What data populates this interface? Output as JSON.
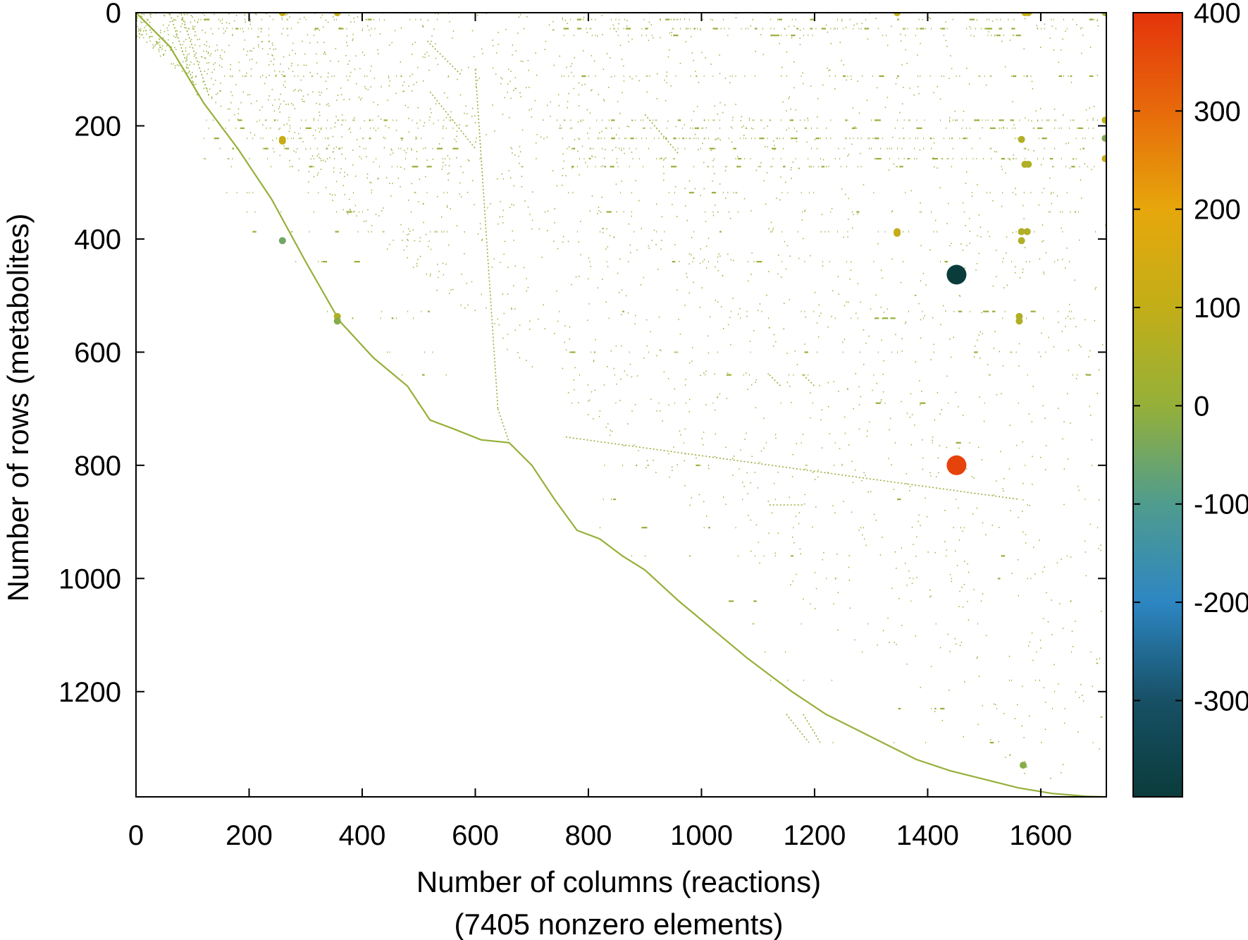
{
  "chart_data": {
    "type": "scatter",
    "title": "",
    "xlabel": "Number of columns (reactions)",
    "xlabel_sub": "(7405 nonzero elements)",
    "ylabel": "Number of rows (metabolites)",
    "xlim": [
      0,
      1716
    ],
    "ylim": [
      1386,
      0
    ],
    "x_ticks": [
      0,
      200,
      400,
      600,
      800,
      1000,
      1200,
      1400,
      1600
    ],
    "y_ticks": [
      0,
      200,
      400,
      600,
      800,
      1000,
      1200
    ],
    "grid": false,
    "colorbar": {
      "min": -398,
      "max": 400,
      "ticks": [
        400,
        300,
        200,
        100,
        0,
        -100,
        -200,
        -300
      ],
      "stops": [
        {
          "v": -398,
          "c": "#0b3c3c"
        },
        {
          "v": -300,
          "c": "#175065"
        },
        {
          "v": -200,
          "c": "#2d86c2"
        },
        {
          "v": -100,
          "c": "#4f9c8e"
        },
        {
          "v": 0,
          "c": "#95b039"
        },
        {
          "v": 100,
          "c": "#c2ae18"
        },
        {
          "v": 200,
          "c": "#e6a70b"
        },
        {
          "v": 300,
          "c": "#e76a0b"
        },
        {
          "v": 400,
          "c": "#e5330b"
        }
      ]
    },
    "diagonal_segments": [
      [
        [
          0,
          0
        ],
        [
          60,
          60
        ],
        [
          120,
          160
        ],
        [
          180,
          240
        ],
        [
          240,
          330
        ],
        [
          300,
          440
        ],
        [
          360,
          545
        ],
        [
          420,
          610
        ],
        [
          480,
          660
        ],
        [
          520,
          720
        ],
        [
          560,
          735
        ],
        [
          610,
          755
        ],
        [
          660,
          760
        ],
        [
          700,
          800
        ],
        [
          740,
          860
        ],
        [
          780,
          915
        ],
        [
          820,
          930
        ],
        [
          860,
          960
        ],
        [
          900,
          985
        ],
        [
          960,
          1040
        ],
        [
          1020,
          1090
        ],
        [
          1080,
          1140
        ],
        [
          1120,
          1170
        ],
        [
          1160,
          1200
        ],
        [
          1220,
          1240
        ],
        [
          1280,
          1270
        ],
        [
          1320,
          1290
        ],
        [
          1380,
          1320
        ],
        [
          1440,
          1340
        ],
        [
          1500,
          1355
        ],
        [
          1560,
          1370
        ],
        [
          1620,
          1380
        ],
        [
          1680,
          1385
        ],
        [
          1716,
          1386
        ]
      ]
    ],
    "series": [
      {
        "kind": "large",
        "points": [
          {
            "x": 1451,
            "y": 463,
            "v": -398
          },
          {
            "x": 1451,
            "y": 800,
            "v": 372
          }
        ]
      },
      {
        "kind": "medium",
        "points": [
          {
            "x": 259,
            "y": 0,
            "v": 110
          },
          {
            "x": 356,
            "y": 0,
            "v": 110
          },
          {
            "x": 1346,
            "y": 0,
            "v": 110
          },
          {
            "x": 1572,
            "y": 0,
            "v": 110
          },
          {
            "x": 1578,
            "y": 0,
            "v": 110
          },
          {
            "x": 1714,
            "y": 0,
            "v": 20
          },
          {
            "x": 259,
            "y": 224,
            "v": 110
          },
          {
            "x": 259,
            "y": 227,
            "v": 110
          },
          {
            "x": 259,
            "y": 403,
            "v": -50
          },
          {
            "x": 356,
            "y": 537,
            "v": 60
          },
          {
            "x": 356,
            "y": 545,
            "v": -20
          },
          {
            "x": 1346,
            "y": 387,
            "v": 110
          },
          {
            "x": 1346,
            "y": 390,
            "v": 110
          },
          {
            "x": 1566,
            "y": 224,
            "v": 60
          },
          {
            "x": 1572,
            "y": 268,
            "v": 60
          },
          {
            "x": 1578,
            "y": 268,
            "v": 60
          },
          {
            "x": 1566,
            "y": 387,
            "v": 60
          },
          {
            "x": 1576,
            "y": 387,
            "v": 60
          },
          {
            "x": 1566,
            "y": 403,
            "v": 60
          },
          {
            "x": 1562,
            "y": 537,
            "v": 60
          },
          {
            "x": 1562,
            "y": 545,
            "v": 60
          },
          {
            "x": 1714,
            "y": 190,
            "v": 100
          },
          {
            "x": 1714,
            "y": 222,
            "v": -30
          },
          {
            "x": 1714,
            "y": 258,
            "v": 110
          },
          {
            "x": 1569,
            "y": 1330,
            "v": -20
          }
        ]
      }
    ],
    "band_rows": [
      0,
      12,
      28,
      40,
      112,
      190,
      204,
      222,
      240,
      258,
      272,
      318,
      352,
      387,
      440,
      528,
      540,
      600,
      640,
      690,
      760,
      800,
      860,
      910,
      960,
      1000,
      1040,
      1080,
      1130,
      1180,
      1230,
      1290
    ],
    "band_column_ranges": [
      [
        [
          0,
          110
        ],
        [
          130,
          520
        ],
        [
          820,
          1700
        ]
      ],
      [
        [
          60,
          100
        ],
        [
          110,
          540
        ],
        [
          740,
          1700
        ]
      ],
      [
        [
          90,
          430
        ],
        [
          750,
          1700
        ]
      ],
      [
        [
          90,
          430
        ],
        [
          750,
          1700
        ]
      ],
      [
        [
          90,
          560
        ],
        [
          740,
          1700
        ]
      ],
      [
        [
          120,
          560
        ],
        [
          740,
          1700
        ]
      ],
      [
        [
          120,
          560
        ],
        [
          740,
          1700
        ]
      ],
      [
        [
          120,
          560
        ],
        [
          740,
          1700
        ]
      ],
      [
        [
          120,
          560
        ],
        [
          740,
          1700
        ]
      ],
      [
        [
          120,
          560
        ],
        [
          740,
          1700
        ]
      ],
      [
        [
          130,
          560
        ],
        [
          740,
          1700
        ]
      ],
      [
        [
          150,
          560
        ],
        [
          740,
          1700
        ]
      ],
      [
        [
          180,
          560
        ],
        [
          740,
          1700
        ]
      ],
      [
        [
          200,
          560
        ],
        [
          740,
          1700
        ]
      ],
      [
        [
          260,
          560
        ],
        [
          740,
          1700
        ]
      ],
      [
        [
          330,
          560
        ],
        [
          740,
          1700
        ]
      ],
      [
        [
          340,
          560
        ],
        [
          740,
          1700
        ]
      ],
      [
        [
          420,
          560
        ],
        [
          740,
          1700
        ]
      ],
      [
        [
          440,
          560
        ],
        [
          760,
          1700
        ]
      ],
      [
        [
          480,
          560
        ],
        [
          760,
          1700
        ]
      ],
      [
        [
          760,
          1700
        ]
      ],
      [
        [
          760,
          1700
        ]
      ],
      [
        [
          780,
          1700
        ]
      ],
      [
        [
          820,
          1700
        ]
      ],
      [
        [
          860,
          1700
        ]
      ],
      [
        [
          900,
          1700
        ]
      ],
      [
        [
          960,
          1700
        ]
      ],
      [
        [
          1000,
          1700
        ]
      ],
      [
        [
          1060,
          1700
        ]
      ],
      [
        [
          1110,
          1700
        ]
      ],
      [
        [
          1160,
          1700
        ]
      ],
      [
        [
          1220,
          1700
        ]
      ]
    ],
    "band_density": [
      0.22,
      0.09,
      0.16,
      0.07,
      0.12,
      0.14,
      0.1,
      0.18,
      0.09,
      0.13,
      0.08,
      0.05,
      0.05,
      0.06,
      0.04,
      0.04,
      0.03,
      0.04,
      0.03,
      0.03,
      0.03,
      0.03,
      0.02,
      0.03,
      0.02,
      0.02,
      0.02,
      0.02,
      0.02,
      0.02,
      0.02,
      0.02
    ],
    "secondary_segments": [
      [
        [
          60,
          2
        ],
        [
          110,
          150
        ]
      ],
      [
        [
          80,
          2
        ],
        [
          130,
          150
        ]
      ],
      [
        [
          515,
          50
        ],
        [
          575,
          110
        ]
      ],
      [
        [
          520,
          140
        ],
        [
          600,
          240
        ]
      ],
      [
        [
          600,
          100
        ],
        [
          640,
          700
        ]
      ],
      [
        [
          640,
          700
        ],
        [
          660,
          760
        ]
      ],
      [
        [
          900,
          180
        ],
        [
          960,
          250
        ]
      ],
      [
        [
          1120,
          640
        ],
        [
          1140,
          660
        ]
      ],
      [
        [
          1180,
          640
        ],
        [
          1200,
          660
        ]
      ],
      [
        [
          760,
          750
        ],
        [
          1560,
          860
        ]
      ],
      [
        [
          1120,
          870
        ],
        [
          1180,
          870
        ]
      ],
      [
        [
          1150,
          1240
        ],
        [
          1190,
          1290
        ]
      ],
      [
        [
          1180,
          1240
        ],
        [
          1210,
          1290
        ]
      ]
    ]
  }
}
